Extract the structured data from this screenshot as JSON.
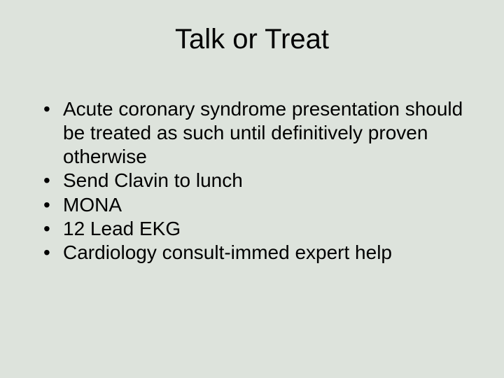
{
  "colors": {
    "background": "#dde3dc",
    "text": "#000000"
  },
  "title": {
    "text": "Talk or Treat",
    "fontsize": 40,
    "font_family": "Arial"
  },
  "body": {
    "fontsize": 28,
    "line_height": 1.22,
    "font_family": "Arial",
    "bullets": [
      "Acute coronary syndrome presentation should be treated as such until definitively proven otherwise",
      "Send Clavin to lunch",
      "MONA",
      "12 Lead EKG",
      "Cardiology consult-immed expert help"
    ]
  }
}
